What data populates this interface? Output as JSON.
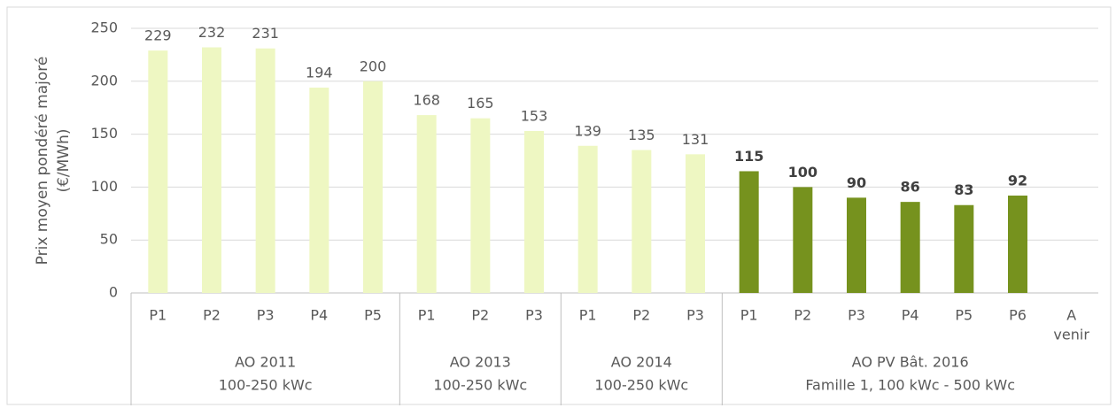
{
  "chart_data": {
    "type": "bar",
    "y_label": [
      "Prix moyen pondéré majoré",
      "(€/MWh)"
    ],
    "ylim": [
      0,
      250
    ],
    "yticks": [
      0,
      50,
      100,
      150,
      200,
      250
    ],
    "grid": true,
    "groups": [
      {
        "name": [
          "AO 2011",
          "100-250 kWc"
        ],
        "color": "#eef7c2",
        "bold_labels": false,
        "categories": [
          [
            "P1"
          ],
          [
            "P2"
          ],
          [
            "P3"
          ],
          [
            "P4"
          ],
          [
            "P5"
          ]
        ],
        "values": [
          229,
          232,
          231,
          194,
          200
        ]
      },
      {
        "name": [
          "AO 2013",
          "100-250 kWc"
        ],
        "color": "#eef7c2",
        "bold_labels": false,
        "categories": [
          [
            "P1"
          ],
          [
            "P2"
          ],
          [
            "P3"
          ]
        ],
        "values": [
          168,
          165,
          153
        ]
      },
      {
        "name": [
          "AO 2014",
          "100-250 kWc"
        ],
        "color": "#eef7c2",
        "bold_labels": false,
        "categories": [
          [
            "P1"
          ],
          [
            "P2"
          ],
          [
            "P3"
          ]
        ],
        "values": [
          139,
          135,
          131
        ]
      },
      {
        "name": [
          "AO PV Bât. 2016",
          "Famille 1, 100 kWc - 500 kWc"
        ],
        "color": "#76921e",
        "bold_labels": true,
        "categories": [
          [
            "P1"
          ],
          [
            "P2"
          ],
          [
            "P3"
          ],
          [
            "P4"
          ],
          [
            "P5"
          ],
          [
            "P6"
          ],
          [
            "A",
            "venir"
          ]
        ],
        "values": [
          115,
          100,
          90,
          86,
          83,
          92,
          null
        ]
      }
    ]
  }
}
